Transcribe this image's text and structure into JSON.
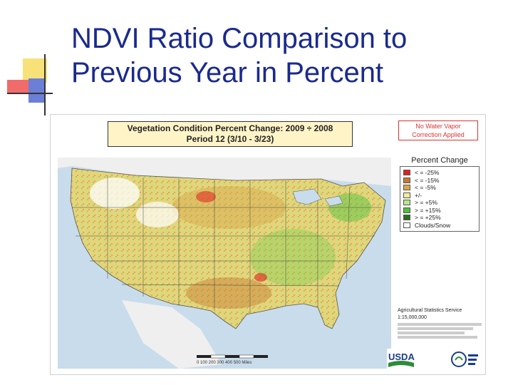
{
  "slide": {
    "title_line1": "NDVI Ratio Comparison to",
    "title_line2": "Previous Year in Percent"
  },
  "map": {
    "title_line1": "Vegetation Condition Percent Change: 2009 ÷ 2008",
    "title_line2": "Period 12 (3/10 - 3/23)",
    "note_line1": "No Water Vapor",
    "note_line2": "Correction Applied",
    "legend": {
      "title": "Percent Change",
      "items": [
        {
          "label": "< = -25%",
          "color": "#e02020"
        },
        {
          "label": "< = -15%",
          "color": "#c87a30"
        },
        {
          "label": "< = -5%",
          "color": "#d9a74a"
        },
        {
          "label": "+/-",
          "color": "#f3ee9a"
        },
        {
          "label": "> = +5%",
          "color": "#b8e68a"
        },
        {
          "label": "> = +15%",
          "color": "#4cc23a"
        },
        {
          "label": "> = +25%",
          "color": "#2d6b1f"
        },
        {
          "label": "Clouds/Snow",
          "color": "#ffffff"
        }
      ]
    },
    "credit_agency": "Agricultural Statistics Service",
    "credit_scale": "1:15,000,000",
    "scale_bar_label": "0   100  200  300  400  500 Miles",
    "logo_text": "USDA"
  }
}
